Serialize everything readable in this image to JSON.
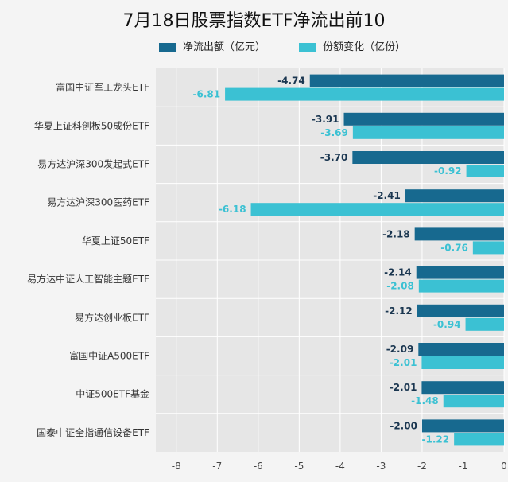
{
  "chart_data": {
    "type": "bar",
    "orientation": "horizontal",
    "title": "7月18日股票指数ETF净流出前10",
    "categories": [
      "富国中证军工龙头ETF",
      "华夏上证科创板50成份ETF",
      "易方达沪深300发起式ETF",
      "易方达沪深300医药ETF",
      "华夏上证50ETF",
      "易方达中证人工智能主题ETF",
      "易方达创业板ETF",
      "富国中证A500ETF",
      "中证500ETF基金",
      "国泰中证全指通信设备ETF"
    ],
    "series": [
      {
        "name": "净流出额（亿元）",
        "color": "#17698f",
        "values": [
          -4.74,
          -3.91,
          -3.7,
          -2.41,
          -2.18,
          -2.14,
          -2.12,
          -2.09,
          -2.01,
          -2.0
        ]
      },
      {
        "name": "份额变化（亿份）",
        "color": "#3bc1d3",
        "values": [
          -6.81,
          -3.69,
          -0.92,
          -6.18,
          -0.76,
          -2.08,
          -0.94,
          -2.01,
          -1.48,
          -1.22
        ]
      }
    ],
    "xlim": [
      -8.5,
      0
    ],
    "xticks": [
      -8,
      -7,
      -6,
      -5,
      -4,
      -3,
      -2,
      -1,
      0
    ],
    "xlabel": "",
    "ylabel": "",
    "grid": true,
    "legend_position": "top",
    "plot_background": "#e6e6e6",
    "gridline_color": "#ffffff"
  }
}
